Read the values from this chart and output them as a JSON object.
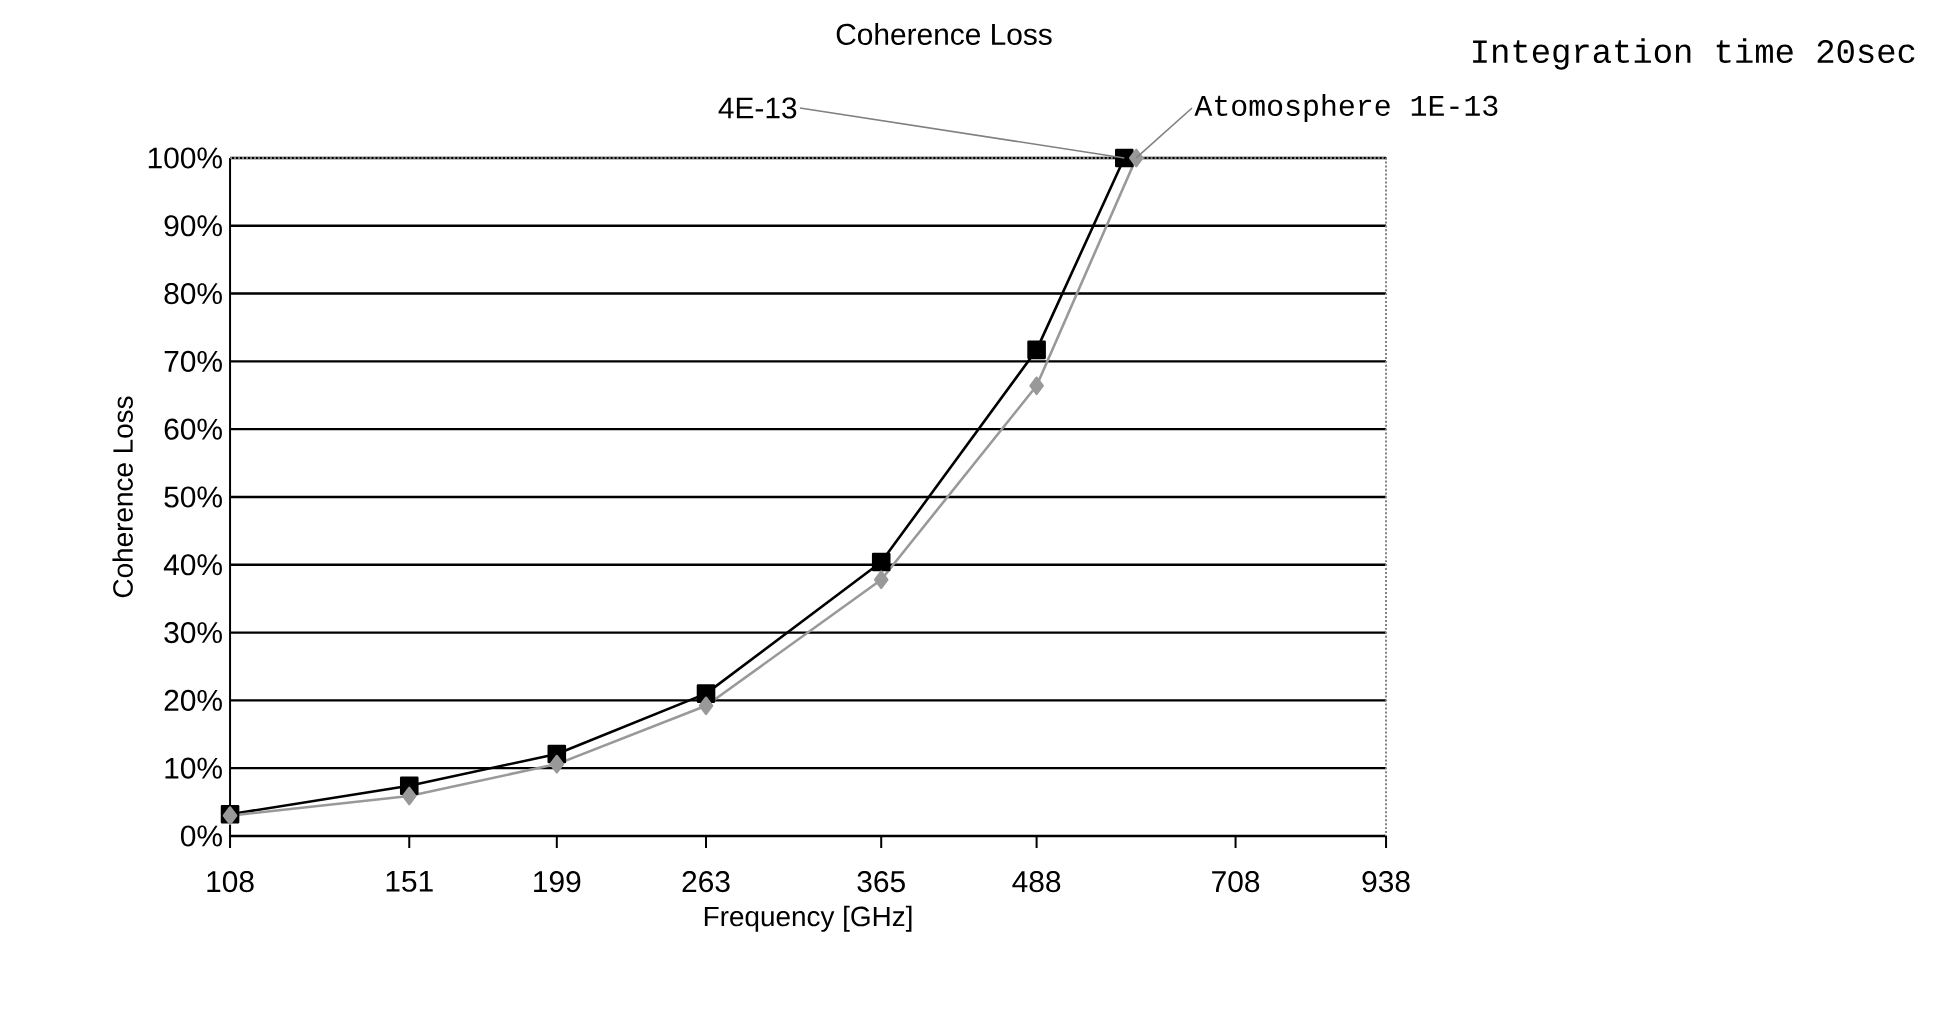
{
  "chart_data": {
    "type": "line",
    "title": "Coherence Loss",
    "annotations": [
      "Integration time 20sec"
    ],
    "xlabel": "Frequency [GHz]",
    "ylabel": "Coherence Loss",
    "log": "x",
    "xlim": [
      108,
      938
    ],
    "xticks": [
      108,
      151,
      199,
      263,
      365,
      488,
      708,
      938
    ],
    "ylim": [
      0,
      100
    ],
    "yticks": [
      {
        "value": 0,
        "label": "0%"
      },
      {
        "value": 10,
        "label": "10%"
      },
      {
        "value": 20,
        "label": "20%"
      },
      {
        "value": 30,
        "label": "30%"
      },
      {
        "value": 40,
        "label": "40%"
      },
      {
        "value": 50,
        "label": "50%"
      },
      {
        "value": 60,
        "label": "60%"
      },
      {
        "value": 70,
        "label": "70%"
      },
      {
        "value": 80,
        "label": "80%"
      },
      {
        "value": 90,
        "label": "90%"
      },
      {
        "value": 100,
        "label": "100%"
      }
    ],
    "grid": "y",
    "legend": false,
    "series": [
      {
        "name": "4E-13",
        "color": "#000000",
        "marker": "square",
        "x": [
          108,
          151,
          199,
          263,
          365,
          488,
          575
        ],
        "values": [
          3.2,
          7.4,
          12.1,
          21,
          40.4,
          71.7,
          100
        ]
      },
      {
        "name": "Atomosphere 1E-13",
        "color": "#999999",
        "marker": "diamond",
        "x": [
          108,
          151,
          199,
          263,
          365,
          488,
          588
        ],
        "values": [
          3,
          5.9,
          10.6,
          19.2,
          37.8,
          66.4,
          100
        ]
      }
    ]
  }
}
